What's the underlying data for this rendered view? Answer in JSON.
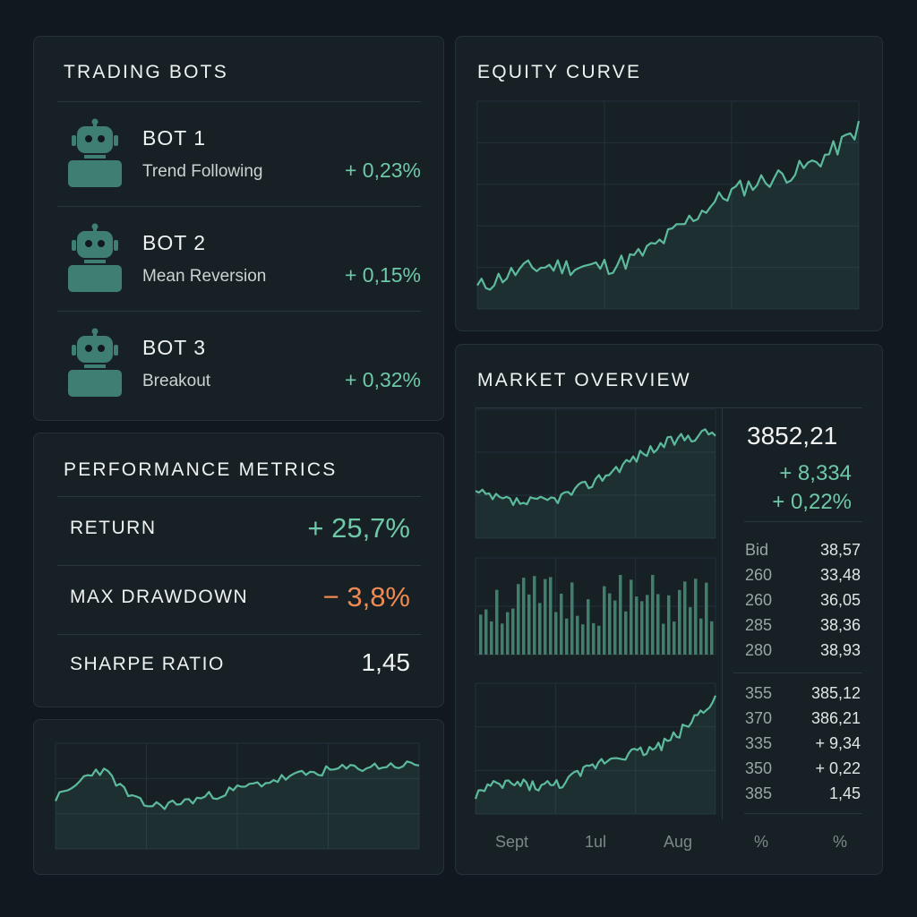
{
  "trading_bots": {
    "title": "TRADING BOTS",
    "bots": [
      {
        "name": "BOT 1",
        "strategy": "Trend Following",
        "change": "+ 0,23%"
      },
      {
        "name": "BOT 2",
        "strategy": "Mean Reversion",
        "change": "+ 0,15%"
      },
      {
        "name": "BOT 3",
        "strategy": "Breakout",
        "change": "+ 0,32%"
      }
    ]
  },
  "equity_curve": {
    "title": "EQUITY CURVE"
  },
  "performance": {
    "title": "PERFORMANCE METRICS",
    "metrics": [
      {
        "label": "RETURN",
        "value": "+ 25,7%"
      },
      {
        "label": "MAX DRAWDOWN",
        "value": "− 3,8%"
      },
      {
        "label": "SHARPE RATIO",
        "value": "1,45"
      }
    ]
  },
  "market": {
    "title": "MARKET OVERVIEW",
    "price": "3852,21",
    "change_abs": "+ 8,334",
    "change_pct": "+ 0,22%",
    "book_top": [
      {
        "left": "Bid",
        "right": "38,57"
      },
      {
        "left": "260",
        "right": "33,48"
      },
      {
        "left": "260",
        "right": "36,05"
      },
      {
        "left": "285",
        "right": "38,36"
      },
      {
        "left": "280",
        "right": "38,93"
      }
    ],
    "book_bottom": [
      {
        "left": "355",
        "right": "385,12"
      },
      {
        "left": "370",
        "right": "386,21"
      },
      {
        "left": "335",
        "right": "+ 9,34"
      },
      {
        "left": "350",
        "right": "+ 0,22"
      },
      {
        "left": "385",
        "right": "1,45"
      }
    ],
    "x_labels": [
      "Sept",
      "1ul",
      "Aug",
      "%",
      "%"
    ]
  },
  "colors": {
    "accent": "#6fc8a8",
    "negative": "#f08a52",
    "line": "#5dbb9d",
    "panel": "#172025",
    "background": "#111820"
  }
}
